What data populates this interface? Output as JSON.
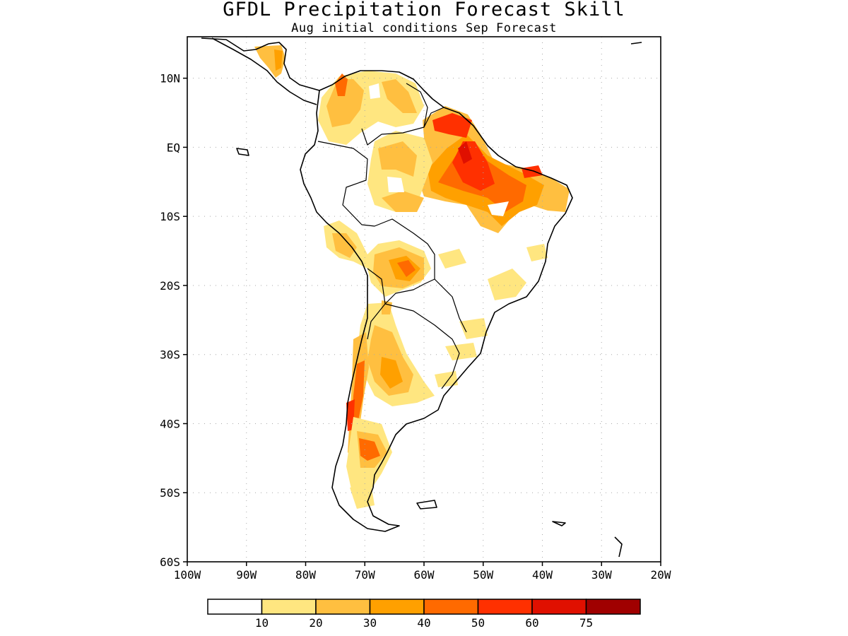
{
  "title": "GFDL Precipitation Forecast Skill",
  "subtitle": "Aug initial conditions  Sep Forecast",
  "map": {
    "lon_range": [
      -100,
      -20
    ],
    "lat_range": [
      -60,
      16
    ],
    "lat_ticks": [
      "10N",
      "EQ",
      "10S",
      "20S",
      "30S",
      "40S",
      "50S",
      "60S"
    ],
    "lon_ticks": [
      "100W",
      "90W",
      "80W",
      "70W",
      "60W",
      "50W",
      "40W",
      "30W",
      "20W"
    ]
  },
  "colorbar": {
    "labels": [
      "10",
      "20",
      "30",
      "40",
      "50",
      "60",
      "75"
    ],
    "colors": [
      "#ffffff",
      "#ffe680",
      "#ffbf40",
      "#ffa000",
      "#ff6a00",
      "#ff3000",
      "#e01000",
      "#a00000"
    ]
  }
}
